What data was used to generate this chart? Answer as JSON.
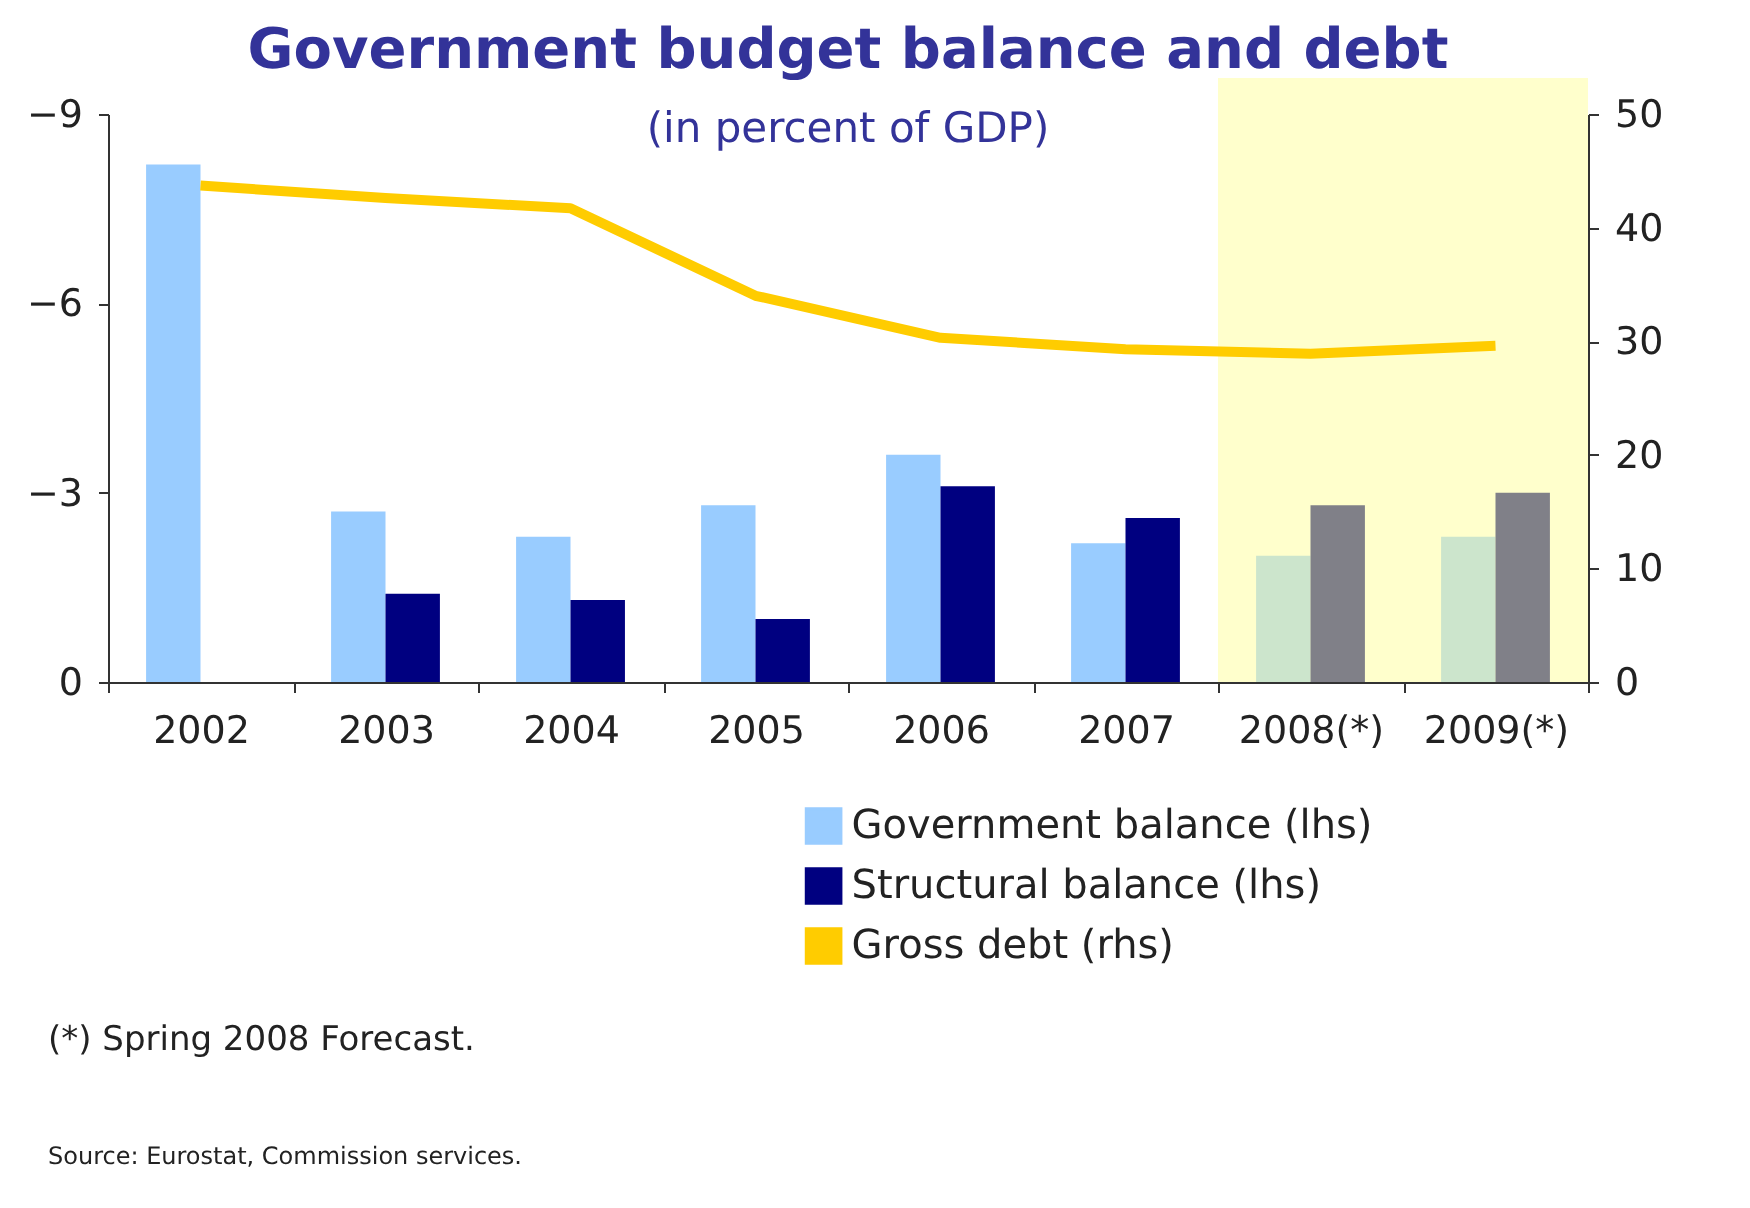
{
  "chart_data": {
    "type": "bar",
    "title": "Government budget balance and debt",
    "subtitle": "(in percent of GDP)",
    "categories": [
      "2002",
      "2003",
      "2004",
      "2005",
      "2006",
      "2007",
      "2008(*)",
      "2009(*)"
    ],
    "series": [
      {
        "name": "Government balance (lhs)",
        "color": "#99ccff",
        "colors": [
          "#99ccff",
          "#99ccff",
          "#99ccff",
          "#99ccff",
          "#99ccff",
          "#99ccff",
          "#cce5cc",
          "#cce5cc"
        ],
        "values": [
          -8.2,
          -2.7,
          -2.3,
          -2.8,
          -3.6,
          -2.2,
          -2.0,
          -2.3
        ]
      },
      {
        "name": "Structural balance (lhs)",
        "color": "#000080",
        "colors": [
          "#000080",
          "#000080",
          "#000080",
          "#000080",
          "#000080",
          "#000080",
          "#808088",
          "#808088"
        ],
        "values": [
          null,
          -1.4,
          -1.3,
          -1.0,
          -3.1,
          -2.6,
          -2.8,
          -3.0
        ]
      },
      {
        "name": "Gross debt (rhs)",
        "type": "line",
        "axis": "y2",
        "color": "#ffcc00",
        "values": [
          43.7,
          42.6,
          41.7,
          34.0,
          30.3,
          29.3,
          28.9,
          29.6
        ]
      }
    ],
    "ylim": [
      0,
      -9
    ],
    "yticks": [
      0,
      -3,
      -6,
      -9
    ],
    "y2lim": [
      0,
      50
    ],
    "y2ticks": [
      0,
      10,
      20,
      30,
      40,
      50
    ],
    "bands": [
      {
        "axis": "x",
        "from": "2008(*)",
        "to": "2009(*)",
        "color": "#ffffcc"
      }
    ],
    "grid": false,
    "legend": "bottom",
    "marker": "none",
    "line_style": "solid",
    "annotations": [
      "(*) Spring 2008 Forecast.",
      "Source: Eurostat, Commission services."
    ]
  }
}
